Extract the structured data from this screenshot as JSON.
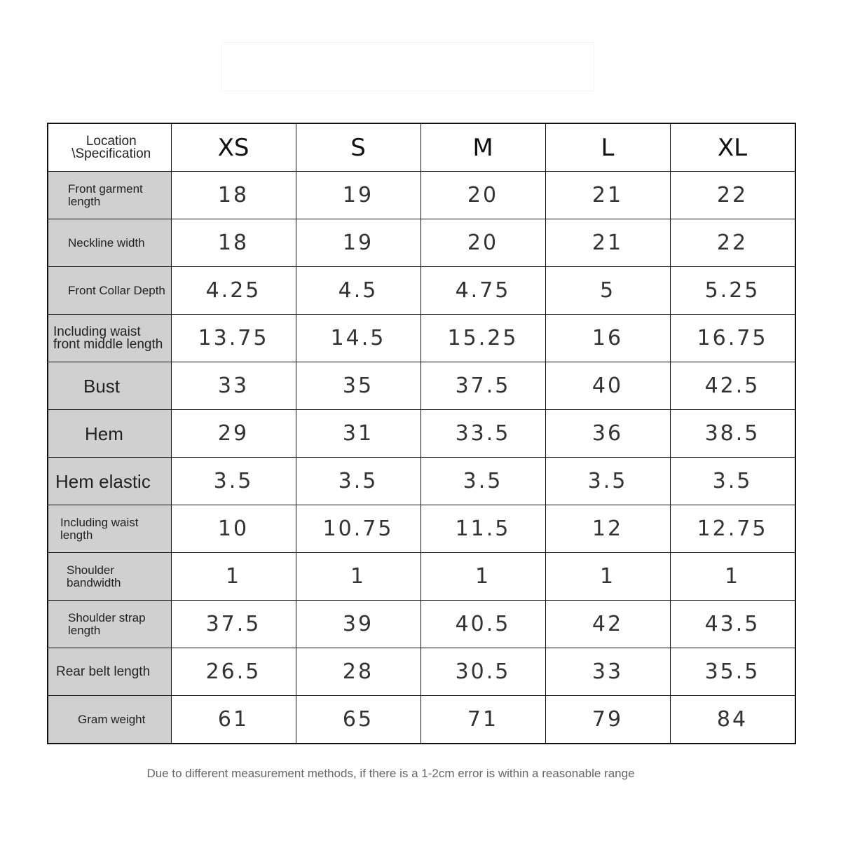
{
  "table": {
    "corner": "Location \\Specification",
    "sizes": [
      "XS",
      "S",
      "M",
      "L",
      "XL"
    ],
    "rows": [
      {
        "label": "Front garment length",
        "values": [
          "18",
          "19",
          "20",
          "21",
          "22"
        ]
      },
      {
        "label": "Neckline width",
        "values": [
          "18",
          "19",
          "20",
          "21",
          "22"
        ]
      },
      {
        "label": "Front Collar Depth",
        "values": [
          "4.25",
          "4.5",
          "4.75",
          "5",
          "5.25"
        ]
      },
      {
        "label": "Including waist front middle length",
        "values": [
          "13.75",
          "14.5",
          "15.25",
          "16",
          "16.75"
        ]
      },
      {
        "label": "Bust",
        "values": [
          "33",
          "35",
          "37.5",
          "40",
          "42.5"
        ]
      },
      {
        "label": "Hem",
        "values": [
          "29",
          "31",
          "33.5",
          "36",
          "38.5"
        ]
      },
      {
        "label": "Hem elastic",
        "values": [
          "3.5",
          "3.5",
          "3.5",
          "3.5",
          "3.5"
        ]
      },
      {
        "label": "Including waist length",
        "values": [
          "10",
          "10.75",
          "11.5",
          "12",
          "12.75"
        ]
      },
      {
        "label": "Shoulder bandwidth",
        "values": [
          "1",
          "1",
          "1",
          "1",
          "1"
        ]
      },
      {
        "label": "Shoulder strap length",
        "values": [
          "37.5",
          "39",
          "40.5",
          "42",
          "43.5"
        ]
      },
      {
        "label": "Rear belt length",
        "values": [
          "26.5",
          "28",
          "30.5",
          "33",
          "35.5"
        ]
      },
      {
        "label": "Gram weight",
        "values": [
          "61",
          "65",
          "71",
          "79",
          "84"
        ]
      }
    ]
  },
  "footnote": "Due to different measurement methods, if there is a 1-2cm error is within a reasonable range"
}
